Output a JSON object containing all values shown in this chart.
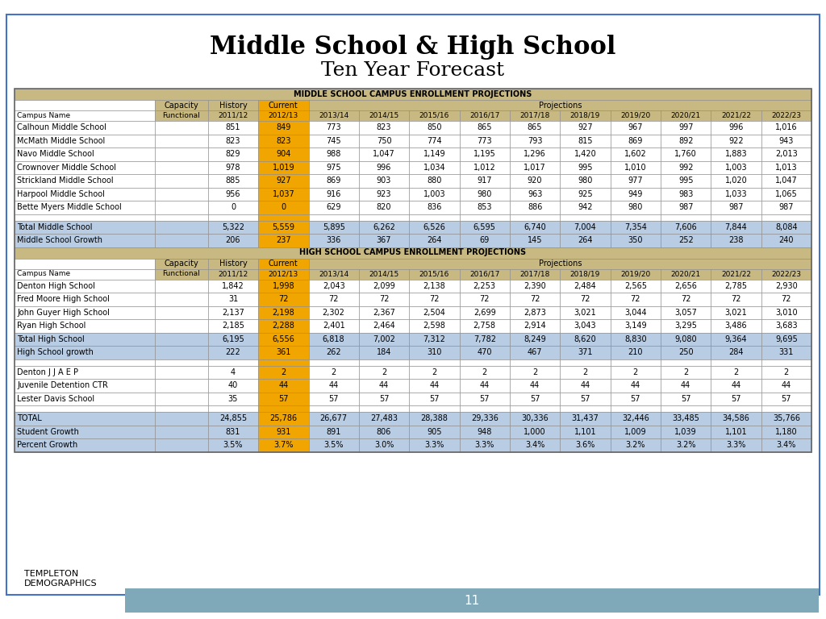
{
  "title1": "Middle School & High School",
  "title2": "Ten Year Forecast",
  "ms_header": "MIDDLE SCHOOL CAMPUS ENROLLMENT PROJECTIONS",
  "hs_header": "HIGH SCHOOL CAMPUS ENROLLMENT PROJECTIONS",
  "col_headers_row1": [
    "",
    "Capacity",
    "History",
    "Current",
    "",
    "",
    "",
    "",
    "Projections",
    "",
    "",
    "",
    "",
    ""
  ],
  "col_headers_row2": [
    "Campus Name",
    "Functional",
    "2011/12",
    "2012/13",
    "2013/14",
    "2014/15",
    "2015/16",
    "2016/17",
    "2017/18",
    "2018/19",
    "2019/20",
    "2020/21",
    "2021/22",
    "2022/23"
  ],
  "ms_data": [
    [
      "Calhoun Middle School",
      "",
      "851",
      "849",
      "773",
      "823",
      "850",
      "865",
      "865",
      "927",
      "967",
      "997",
      "996",
      "1,016"
    ],
    [
      "McMath Middle School",
      "",
      "823",
      "823",
      "745",
      "750",
      "774",
      "773",
      "793",
      "815",
      "869",
      "892",
      "922",
      "943"
    ],
    [
      "Navo Middle School",
      "",
      "829",
      "904",
      "988",
      "1,047",
      "1,149",
      "1,195",
      "1,296",
      "1,420",
      "1,602",
      "1,760",
      "1,883",
      "2,013"
    ],
    [
      "Crownover Middle School",
      "",
      "978",
      "1,019",
      "975",
      "996",
      "1,034",
      "1,012",
      "1,017",
      "995",
      "1,010",
      "992",
      "1,003",
      "1,013"
    ],
    [
      "Strickland Middle School",
      "",
      "885",
      "927",
      "869",
      "903",
      "880",
      "917",
      "920",
      "980",
      "977",
      "995",
      "1,020",
      "1,047"
    ],
    [
      "Harpool Middle School",
      "",
      "956",
      "1,037",
      "916",
      "923",
      "1,003",
      "980",
      "963",
      "925",
      "949",
      "983",
      "1,033",
      "1,065"
    ],
    [
      "Bette Myers Middle School",
      "",
      "0",
      "0",
      "629",
      "820",
      "836",
      "853",
      "886",
      "942",
      "980",
      "987",
      "987",
      "987"
    ]
  ],
  "ms_totals": [
    [
      "Total Middle School",
      "",
      "5,322",
      "5,559",
      "5,895",
      "6,262",
      "6,526",
      "6,595",
      "6,740",
      "7,004",
      "7,354",
      "7,606",
      "7,844",
      "8,084"
    ],
    [
      "Middle School Growth",
      "",
      "206",
      "237",
      "336",
      "367",
      "264",
      "69",
      "145",
      "264",
      "350",
      "252",
      "238",
      "240"
    ]
  ],
  "hs_data": [
    [
      "Denton High School",
      "",
      "1,842",
      "1,998",
      "2,043",
      "2,099",
      "2,138",
      "2,253",
      "2,390",
      "2,484",
      "2,565",
      "2,656",
      "2,785",
      "2,930"
    ],
    [
      "Fred Moore High School",
      "",
      "31",
      "72",
      "72",
      "72",
      "72",
      "72",
      "72",
      "72",
      "72",
      "72",
      "72",
      "72"
    ],
    [
      "John Guyer High School",
      "",
      "2,137",
      "2,198",
      "2,302",
      "2,367",
      "2,504",
      "2,699",
      "2,873",
      "3,021",
      "3,044",
      "3,057",
      "3,021",
      "3,010"
    ],
    [
      "Ryan High School",
      "",
      "2,185",
      "2,288",
      "2,401",
      "2,464",
      "2,598",
      "2,758",
      "2,914",
      "3,043",
      "3,149",
      "3,295",
      "3,486",
      "3,683"
    ]
  ],
  "hs_totals": [
    [
      "Total High School",
      "",
      "6,195",
      "6,556",
      "6,818",
      "7,002",
      "7,312",
      "7,782",
      "8,249",
      "8,620",
      "8,830",
      "9,080",
      "9,364",
      "9,695"
    ],
    [
      "High School growth",
      "",
      "222",
      "361",
      "262",
      "184",
      "310",
      "470",
      "467",
      "371",
      "210",
      "250",
      "284",
      "331"
    ]
  ],
  "other_data": [
    [
      "Denton J J A E P",
      "",
      "4",
      "2",
      "2",
      "2",
      "2",
      "2",
      "2",
      "2",
      "2",
      "2",
      "2",
      "2"
    ],
    [
      "Juvenile Detention CTR",
      "",
      "40",
      "44",
      "44",
      "44",
      "44",
      "44",
      "44",
      "44",
      "44",
      "44",
      "44",
      "44"
    ],
    [
      "Lester Davis School",
      "",
      "35",
      "57",
      "57",
      "57",
      "57",
      "57",
      "57",
      "57",
      "57",
      "57",
      "57",
      "57"
    ]
  ],
  "summary_data": [
    [
      "TOTAL",
      "",
      "24,855",
      "25,786",
      "26,677",
      "27,483",
      "28,388",
      "29,336",
      "30,336",
      "31,437",
      "32,446",
      "33,485",
      "34,586",
      "35,766"
    ],
    [
      "Student Growth",
      "",
      "831",
      "931",
      "891",
      "806",
      "905",
      "948",
      "1,000",
      "1,101",
      "1,009",
      "1,039",
      "1,101",
      "1,180"
    ],
    [
      "Percent Growth",
      "",
      "3.5%",
      "3.7%",
      "3.5%",
      "3.0%",
      "3.3%",
      "3.3%",
      "3.4%",
      "3.6%",
      "3.2%",
      "3.2%",
      "3.3%",
      "3.4%"
    ]
  ],
  "colors": {
    "header_bg": "#c8b882",
    "section_header_bg": "#c8b882",
    "current_col_bg": "#f0a500",
    "total_row_bg": "#b8cce4",
    "white_bg": "#ffffff",
    "border": "#000000",
    "text_dark": "#000000",
    "outer_border": "#4472c4",
    "title_bg": "#ffffff",
    "footer_bg": "#7fa8b8",
    "blank_row_bg": "#f0a500"
  },
  "page_number": "11"
}
